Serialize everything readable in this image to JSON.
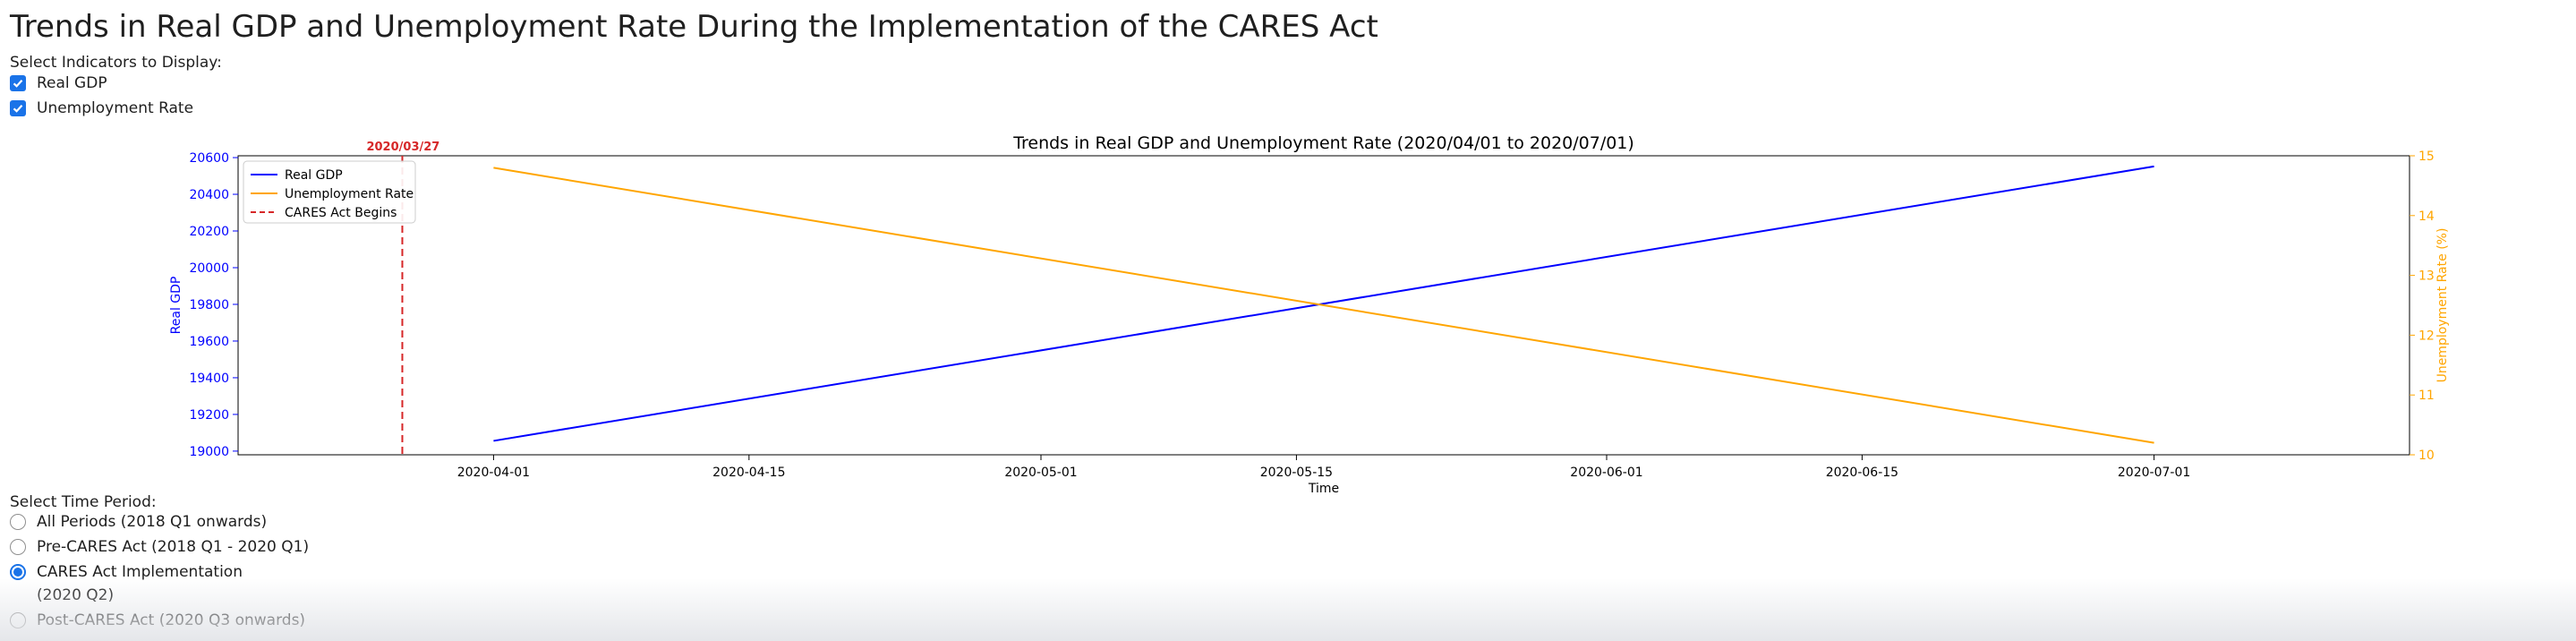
{
  "page": {
    "title": "Trends in Real GDP and Unemployment Rate During the Implementation of the CARES Act"
  },
  "indicators": {
    "label": "Select Indicators to Display:",
    "options": [
      {
        "label": "Real GDP",
        "checked": true
      },
      {
        "label": "Unemployment Rate",
        "checked": true
      }
    ]
  },
  "period": {
    "label": "Select Time Period:",
    "options": [
      {
        "label": "All Periods (2018 Q1 onwards)",
        "selected": false
      },
      {
        "label": "Pre-CARES Act (2018 Q1 - 2020 Q1)",
        "selected": false
      },
      {
        "label": "CARES Act Implementation (2020 Q2)",
        "selected": true
      },
      {
        "label": "Post-CARES Act (2020 Q3 onwards)",
        "selected": false
      }
    ]
  },
  "colors": {
    "gdp": "#0000ff",
    "unemployment": "#ffa500",
    "cares": "#d62728",
    "accent": "#1a73e8"
  },
  "chart_data": {
    "type": "line",
    "title": "Trends in Real GDP and Unemployment Rate (2020/04/01 to 2020/07/01)",
    "xlabel": "Time",
    "ylabel": "Real GDP",
    "y2label": "Unemployment Rate (%)",
    "x": [
      "2020-04-01",
      "2020-07-01"
    ],
    "xlim": [
      "2020-03-18",
      "2020-07-15"
    ],
    "xticks": [
      "2020-04-01",
      "2020-04-15",
      "2020-05-01",
      "2020-05-15",
      "2020-06-01",
      "2020-06-15",
      "2020-07-01"
    ],
    "ylim": [
      18980,
      20610
    ],
    "yticks": [
      19000,
      19200,
      19400,
      19600,
      19800,
      20000,
      20200,
      20400,
      20600
    ],
    "y2lim": [
      10,
      15
    ],
    "y2ticks": [
      10,
      11,
      12,
      13,
      14,
      15
    ],
    "series": [
      {
        "name": "Real GDP",
        "axis": "left",
        "color": "#0000ff",
        "values": [
          19056,
          20552
        ]
      },
      {
        "name": "Unemployment Rate",
        "axis": "right",
        "color": "#ffa500",
        "values": [
          14.8,
          10.2
        ]
      }
    ],
    "annotations": [
      {
        "name": "CARES Act Begins",
        "label": "2020/03/27",
        "x": "2020-03-27",
        "color": "#d62728",
        "style": "dashed"
      }
    ],
    "legend": {
      "position": "top-left",
      "entries": [
        "Real GDP",
        "Unemployment Rate",
        "CARES Act Begins"
      ]
    },
    "grid": false
  }
}
